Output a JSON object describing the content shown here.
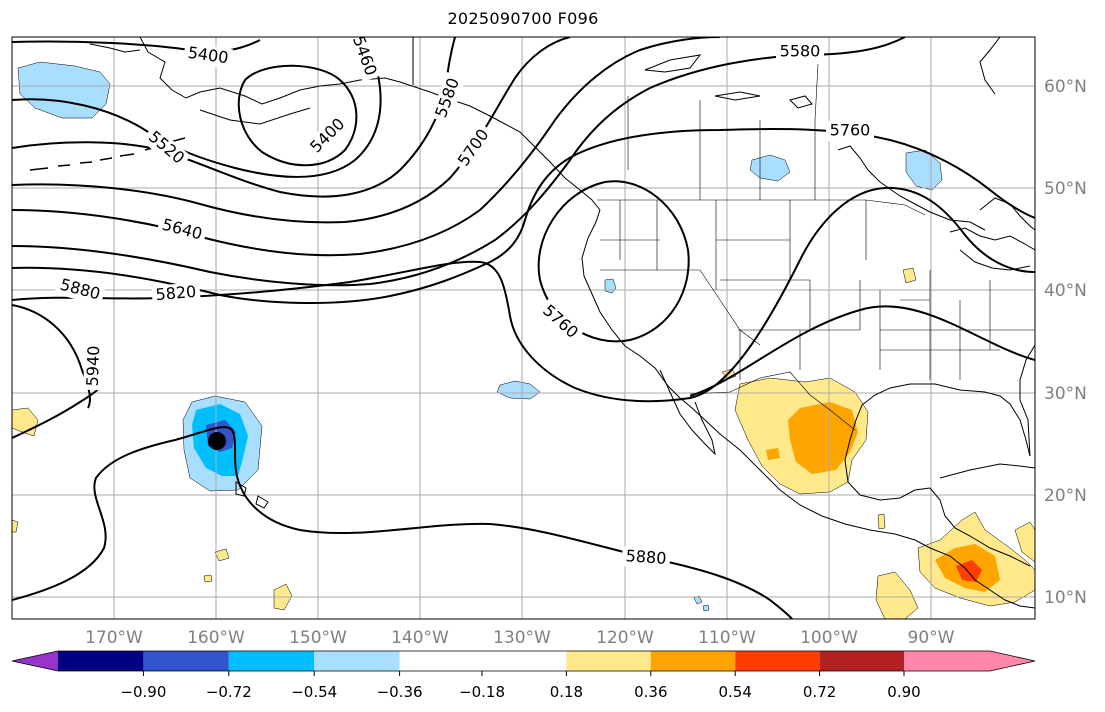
{
  "title": "2025090700 F096",
  "longitude_labels": [
    "170°W",
    "160°W",
    "150°W",
    "140°W",
    "130°W",
    "120°W",
    "110°W",
    "100°W",
    "90°W"
  ],
  "latitude_labels": [
    "60°N",
    "50°N",
    "40°N",
    "30°N",
    "20°N",
    "10°N"
  ],
  "contour_labels": [
    "5400",
    "5460",
    "5520",
    "5580",
    "5580",
    "5700",
    "5400",
    "5760",
    "5640",
    "5820",
    "5880",
    "5940",
    "5760",
    "5880"
  ],
  "colorbar": {
    "tick_labels": [
      "−0.90",
      "−0.72",
      "−0.54",
      "−0.36",
      "−0.18",
      "0.18",
      "0.36",
      "0.54",
      "0.72",
      "0.90"
    ],
    "colors": [
      "#9933cc",
      "#000080",
      "#3355cc",
      "#00bfff",
      "#aadeff",
      "#ffffff",
      "#ffe98a",
      "#ffa500",
      "#ff3d00",
      "#b22222",
      "#ff88aa"
    ]
  },
  "colors": {
    "axis_label": "#808080",
    "grid": "#aaaaaa",
    "contour": "#000000"
  },
  "markers": [
    "hurricane-center-marker"
  ]
}
